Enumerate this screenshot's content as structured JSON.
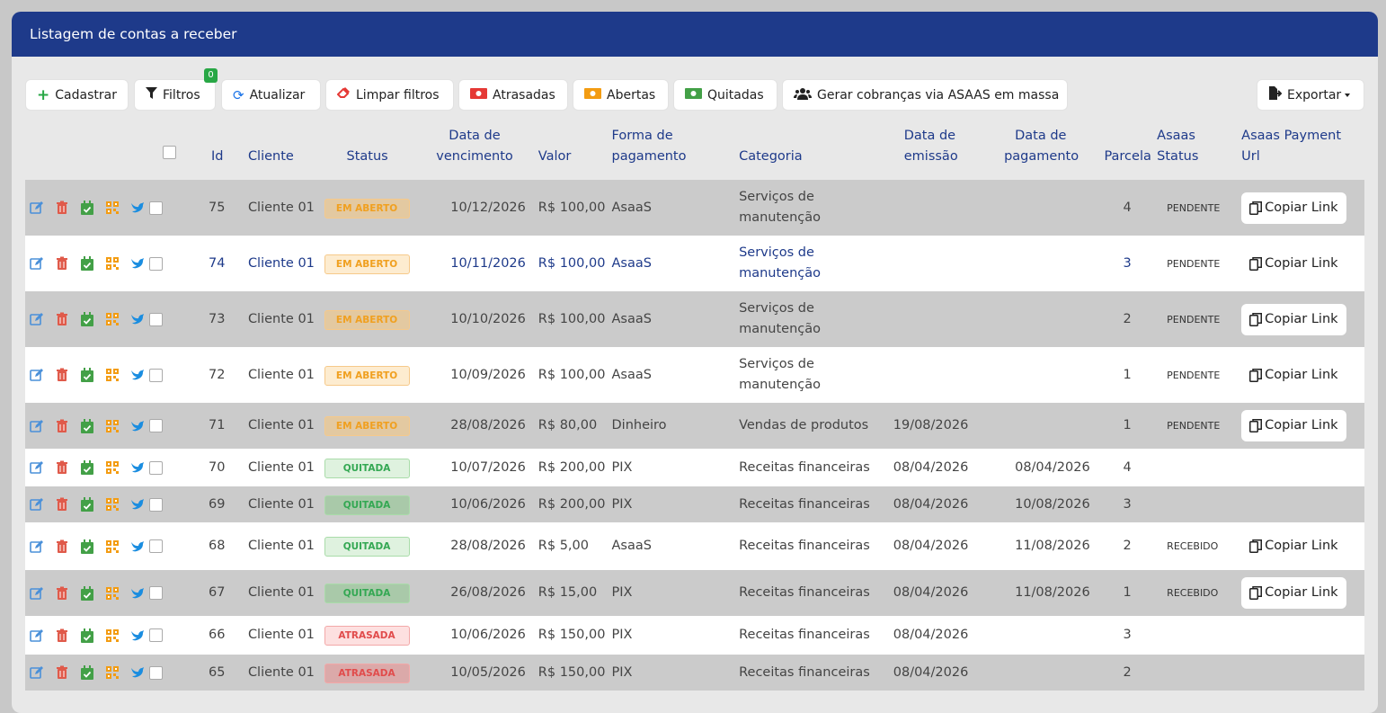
{
  "header": {
    "title": "Listagem de contas a receber"
  },
  "toolbar": {
    "cadastrar": "Cadastrar",
    "filtros": "Filtros",
    "filtros_count": "0",
    "atualizar": "Atualizar",
    "limpar": "Limpar filtros",
    "atrasadas": "Atrasadas",
    "abertas": "Abertas",
    "quitadas": "Quitadas",
    "gerar": "Gerar cobranças via ASAAS em massa",
    "exportar": "Exportar"
  },
  "table": {
    "headers": {
      "id": "Id",
      "cliente": "Cliente",
      "status": "Status",
      "vencimento_1": "Data de",
      "vencimento_2": "vencimento",
      "valor": "Valor",
      "forma_1": "Forma de",
      "forma_2": "pagamento",
      "categoria": "Categoria",
      "emissao_1": "Data de",
      "emissao_2": "emissão",
      "pagamento_1": "Data de",
      "pagamento_2": "pagamento",
      "parcela": "Parcela",
      "asaas_status_1": "Asaas",
      "asaas_status_2": "Status",
      "asaas_url_1": "Asaas Payment",
      "asaas_url_2": "Url"
    },
    "rows": [
      {
        "id": "75",
        "cliente": "Cliente 01",
        "status": "EM ABERTO",
        "vencimento": "10/12/2026",
        "valor": "R$ 100,00",
        "forma": "AsaaS",
        "categoria_1": "Serviços de",
        "categoria_2": "manutenção",
        "emissao": "",
        "pagamento": "",
        "parcela": "4",
        "asaas_status": "PENDENTE",
        "link": "Copiar Link"
      },
      {
        "id": "74",
        "cliente": "Cliente 01",
        "status": "EM ABERTO",
        "vencimento": "10/11/2026",
        "valor": "R$ 100,00",
        "forma": "AsaaS",
        "categoria_1": "Serviços de",
        "categoria_2": "manutenção",
        "emissao": "",
        "pagamento": "",
        "parcela": "3",
        "asaas_status": "PENDENTE",
        "link": "Copiar Link"
      },
      {
        "id": "73",
        "cliente": "Cliente 01",
        "status": "EM ABERTO",
        "vencimento": "10/10/2026",
        "valor": "R$ 100,00",
        "forma": "AsaaS",
        "categoria_1": "Serviços de",
        "categoria_2": "manutenção",
        "emissao": "",
        "pagamento": "",
        "parcela": "2",
        "asaas_status": "PENDENTE",
        "link": "Copiar Link"
      },
      {
        "id": "72",
        "cliente": "Cliente 01",
        "status": "EM ABERTO",
        "vencimento": "10/09/2026",
        "valor": "R$ 100,00",
        "forma": "AsaaS",
        "categoria_1": "Serviços de",
        "categoria_2": "manutenção",
        "emissao": "",
        "pagamento": "",
        "parcela": "1",
        "asaas_status": "PENDENTE",
        "link": "Copiar Link"
      },
      {
        "id": "71",
        "cliente": "Cliente 01",
        "status": "EM ABERTO",
        "vencimento": "28/08/2026",
        "valor": "R$ 80,00",
        "forma": "Dinheiro",
        "categoria_1": "Vendas de produtos",
        "categoria_2": "",
        "emissao": "19/08/2026",
        "pagamento": "",
        "parcela": "1",
        "asaas_status": "PENDENTE",
        "link": "Copiar Link"
      },
      {
        "id": "70",
        "cliente": "Cliente 01",
        "status": "QUITADA",
        "vencimento": "10/07/2026",
        "valor": "R$ 200,00",
        "forma": "PIX",
        "categoria_1": "Receitas financeiras",
        "categoria_2": "",
        "emissao": "08/04/2026",
        "pagamento": "08/04/2026",
        "parcela": "4",
        "asaas_status": "",
        "link": ""
      },
      {
        "id": "69",
        "cliente": "Cliente 01",
        "status": "QUITADA",
        "vencimento": "10/06/2026",
        "valor": "R$ 200,00",
        "forma": "PIX",
        "categoria_1": "Receitas financeiras",
        "categoria_2": "",
        "emissao": "08/04/2026",
        "pagamento": "10/08/2026",
        "parcela": "3",
        "asaas_status": "",
        "link": ""
      },
      {
        "id": "68",
        "cliente": "Cliente 01",
        "status": "QUITADA",
        "vencimento": "28/08/2026",
        "valor": "R$ 5,00",
        "forma": "AsaaS",
        "categoria_1": "Receitas financeiras",
        "categoria_2": "",
        "emissao": "08/04/2026",
        "pagamento": "11/08/2026",
        "parcela": "2",
        "asaas_status": "RECEBIDO",
        "link": "Copiar Link"
      },
      {
        "id": "67",
        "cliente": "Cliente 01",
        "status": "QUITADA",
        "vencimento": "26/08/2026",
        "valor": "R$ 15,00",
        "forma": "PIX",
        "categoria_1": "Receitas financeiras",
        "categoria_2": "",
        "emissao": "08/04/2026",
        "pagamento": "11/08/2026",
        "parcela": "1",
        "asaas_status": "RECEBIDO",
        "link": "Copiar Link"
      },
      {
        "id": "66",
        "cliente": "Cliente 01",
        "status": "ATRASADA",
        "vencimento": "10/06/2026",
        "valor": "R$ 150,00",
        "forma": "PIX",
        "categoria_1": "Receitas financeiras",
        "categoria_2": "",
        "emissao": "08/04/2026",
        "pagamento": "",
        "parcela": "3",
        "asaas_status": "",
        "link": ""
      },
      {
        "id": "65",
        "cliente": "Cliente 01",
        "status": "ATRASADA",
        "vencimento": "10/05/2026",
        "valor": "R$ 150,00",
        "forma": "PIX",
        "categoria_1": "Receitas financeiras",
        "categoria_2": "",
        "emissao": "08/04/2026",
        "pagamento": "",
        "parcela": "2",
        "asaas_status": "",
        "link": ""
      }
    ]
  }
}
